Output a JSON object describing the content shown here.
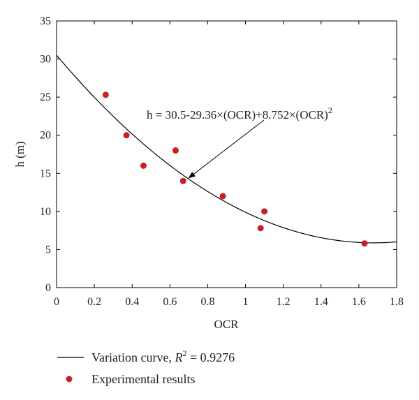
{
  "chart_data": {
    "type": "scatter",
    "xlabel": "OCR",
    "ylabel": "h (m)",
    "xlim": [
      0,
      1.8
    ],
    "ylim": [
      0,
      35
    ],
    "x_ticks": [
      0,
      0.2,
      0.4,
      0.6,
      0.8,
      1,
      1.2,
      1.4,
      1.6,
      1.8
    ],
    "x_tick_labels": [
      "0",
      "0.2",
      "0.4",
      "0.6",
      "0.8",
      "1",
      "1.2",
      "1.4",
      "1.6",
      "1.8"
    ],
    "y_ticks": [
      0,
      5,
      10,
      15,
      20,
      25,
      30,
      35
    ],
    "y_tick_labels": [
      "0",
      "5",
      "10",
      "15",
      "20",
      "25",
      "30",
      "35"
    ],
    "grid": false,
    "legend_position": "bottom",
    "series": [
      {
        "name": "Variation curve, R² = 0.9276",
        "kind": "line",
        "color": "#000000",
        "coefficients": [
          30.5,
          -29.36,
          8.752
        ]
      },
      {
        "name": "Experimental results",
        "kind": "scatter",
        "color": "#c8201e",
        "points": [
          {
            "x": 0.26,
            "y": 25.3
          },
          {
            "x": 0.37,
            "y": 20.0
          },
          {
            "x": 0.46,
            "y": 16.0
          },
          {
            "x": 0.63,
            "y": 18.0
          },
          {
            "x": 0.67,
            "y": 14.0
          },
          {
            "x": 0.88,
            "y": 12.0
          },
          {
            "x": 1.08,
            "y": 7.8
          },
          {
            "x": 1.1,
            "y": 10.0
          },
          {
            "x": 1.63,
            "y": 5.8
          }
        ]
      }
    ],
    "annotation": {
      "text_main": "h = 30.5-29.36×(OCR)+8.752×(OCR)",
      "text_sup": "2",
      "arrow_target": {
        "x": 0.7,
        "y": 14.4
      }
    },
    "legend": {
      "curve_prefix": "Variation curve, ",
      "curve_r": "R",
      "curve_sup": "2",
      "curve_suffix": " = 0.9276",
      "points_label": "Experimental results"
    }
  }
}
